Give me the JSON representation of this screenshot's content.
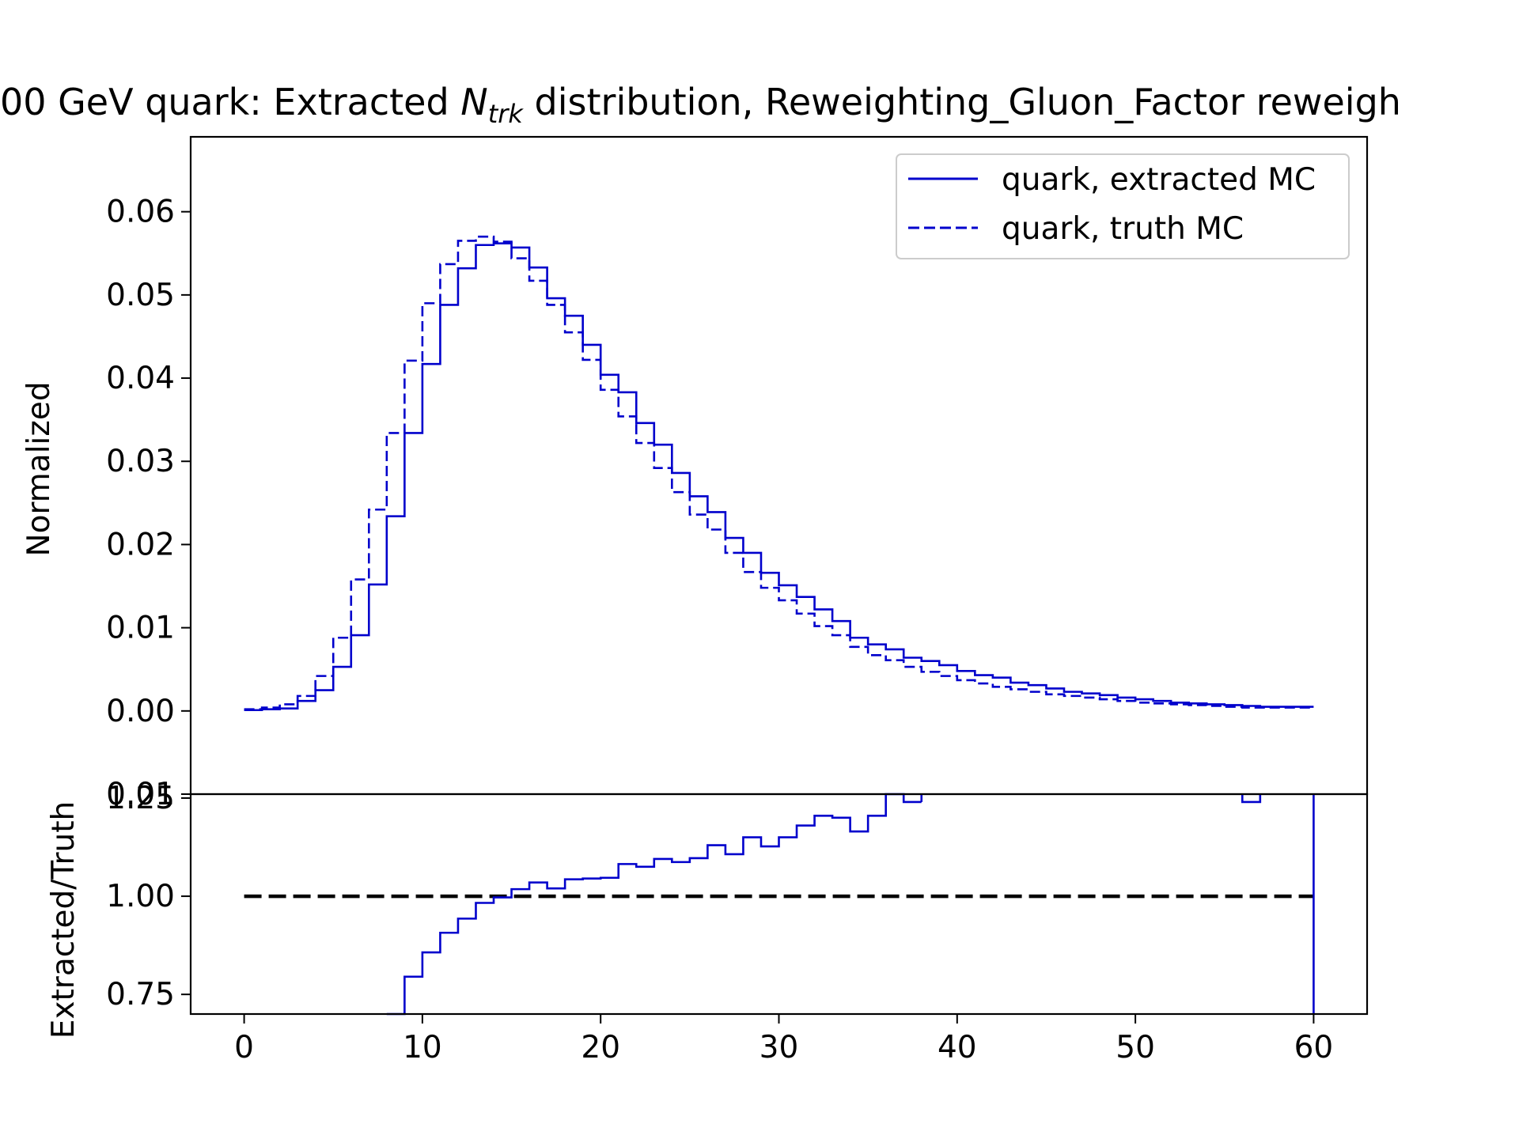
{
  "chart_data": [
    {
      "type": "step",
      "panel": "main",
      "title": "00 GeV quark: Extracted N_trk distribution, Reweighting_Gluon_Factor reweigh",
      "title_parts": {
        "prefix": "00 GeV quark: Extracted ",
        "symbol": "N",
        "subscript": "trk",
        "suffix": " distribution, Reweighting_Gluon_Factor reweigh"
      },
      "xlabel": "",
      "ylabel": "Normalized",
      "xlim": [
        -3,
        63
      ],
      "ylim": [
        -0.01,
        0.069
      ],
      "x_ticks": [
        "0",
        "10",
        "20",
        "30",
        "40",
        "50",
        "60"
      ],
      "y_ticks": [
        "0.00",
        "0.01",
        "0.02",
        "0.03",
        "0.04",
        "0.05",
        "0.06"
      ],
      "bottom_tick_label": "0.01",
      "grid": false,
      "legend_placement": "top-right",
      "bin_edges": [
        0,
        1,
        2,
        3,
        4,
        5,
        6,
        7,
        8,
        9,
        10,
        11,
        12,
        13,
        14,
        15,
        16,
        17,
        18,
        19,
        20,
        21,
        22,
        23,
        24,
        25,
        26,
        27,
        28,
        29,
        30,
        31,
        32,
        33,
        34,
        35,
        36,
        37,
        38,
        39,
        40,
        41,
        42,
        43,
        44,
        45,
        46,
        47,
        48,
        49,
        50,
        51,
        52,
        53,
        54,
        55,
        56,
        57,
        58,
        59,
        60
      ],
      "series": [
        {
          "name": "quark, extracted MC",
          "style": "solid",
          "color": "#0000cc",
          "values": [
            0.0001,
            0.0002,
            0.0003,
            0.0012,
            0.0025,
            0.0053,
            0.0091,
            0.0152,
            0.0234,
            0.0334,
            0.0417,
            0.0488,
            0.0532,
            0.056,
            0.0562,
            0.0557,
            0.0533,
            0.0496,
            0.0475,
            0.044,
            0.0404,
            0.0383,
            0.0346,
            0.032,
            0.0286,
            0.0258,
            0.0239,
            0.0208,
            0.019,
            0.0166,
            0.0151,
            0.0137,
            0.0122,
            0.0108,
            0.0088,
            0.008,
            0.0074,
            0.0064,
            0.006,
            0.0055,
            0.0048,
            0.0043,
            0.004,
            0.0034,
            0.0031,
            0.0027,
            0.0023,
            0.0021,
            0.0019,
            0.0016,
            0.0014,
            0.0012,
            0.001,
            0.0009,
            0.0008,
            0.0007,
            0.0006,
            0.0005,
            0.0005,
            0.0005
          ]
        },
        {
          "name": "quark, truth MC",
          "style": "dashed",
          "color": "#0000cc",
          "values": [
            0.0002,
            0.0004,
            0.0008,
            0.0018,
            0.0042,
            0.0088,
            0.0158,
            0.0242,
            0.0334,
            0.0421,
            0.049,
            0.0537,
            0.0565,
            0.057,
            0.0564,
            0.0544,
            0.0517,
            0.0488,
            0.0455,
            0.0422,
            0.0386,
            0.0354,
            0.0322,
            0.0292,
            0.0263,
            0.0236,
            0.0218,
            0.019,
            0.0167,
            0.0148,
            0.0133,
            0.0117,
            0.0102,
            0.0091,
            0.0077,
            0.0067,
            0.0061,
            0.0053,
            0.0047,
            0.0042,
            0.0037,
            0.0033,
            0.0029,
            0.0026,
            0.0023,
            0.002,
            0.0018,
            0.0016,
            0.0014,
            0.0012,
            0.001,
            0.0009,
            0.0008,
            0.0007,
            0.0006,
            0.0005,
            0.0004,
            0.0004,
            0.0004,
            0.0004
          ]
        }
      ]
    },
    {
      "type": "step",
      "panel": "ratio",
      "xlabel": "",
      "ylabel": "Extracted/Truth",
      "xlim": [
        -3,
        63
      ],
      "ylim": [
        0.7,
        1.26
      ],
      "x_ticks": [
        "0",
        "10",
        "20",
        "30",
        "40",
        "50",
        "60"
      ],
      "y_ticks": [
        "0.75",
        "1.00",
        "1.25"
      ],
      "reference_line": 1.0,
      "reference_color": "#000000",
      "grid": false,
      "bin_edges": [
        8,
        9,
        10,
        11,
        12,
        13,
        14,
        15,
        16,
        17,
        18,
        19,
        20,
        21,
        22,
        23,
        24,
        25,
        26,
        27,
        28,
        29,
        30,
        31,
        32,
        33,
        34,
        35,
        36,
        37,
        38
      ],
      "series": [
        {
          "name": "",
          "color": "#0000cc",
          "values": [
            0.7,
            0.795,
            0.857,
            0.907,
            0.943,
            0.983,
            0.997,
            1.018,
            1.035,
            1.02,
            1.043,
            1.045,
            1.047,
            1.082,
            1.075,
            1.095,
            1.087,
            1.097,
            1.13,
            1.107,
            1.15,
            1.127,
            1.15,
            1.18,
            1.205,
            1.2,
            1.165,
            1.205,
            1.267,
            1.24
          ]
        }
      ],
      "extra_step": {
        "x_from": 56,
        "x_to": 57,
        "value": 1.24
      },
      "end_drop_x": 60
    }
  ]
}
